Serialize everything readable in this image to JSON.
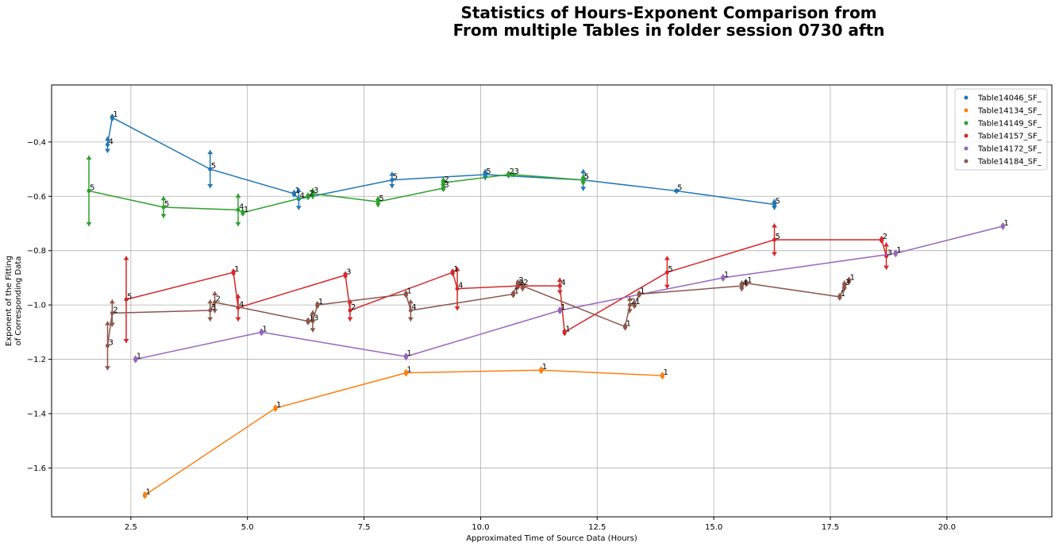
{
  "chart_data": {
    "type": "line",
    "title_lines": [
      "Statistics of Hours-Exponent Comparison from",
      "From multiple Tables in folder session 0730 aftn"
    ],
    "xlabel": "Approximated Time of Source Data (Hours)",
    "ylabel_lines": [
      "Exponent of the Fitting",
      "of Corresponding Data"
    ],
    "xlim": [
      0.8,
      22.25
    ],
    "ylim": [
      -1.78,
      -0.19
    ],
    "xticks": [
      2.5,
      5.0,
      7.5,
      10.0,
      12.5,
      15.0,
      17.5,
      20.0
    ],
    "xtick_labels": [
      "2.5",
      "5.0",
      "7.5",
      "10.0",
      "12.5",
      "15.0",
      "17.5",
      "20.0"
    ],
    "yticks": [
      -1.6,
      -1.4,
      -1.2,
      -1.0,
      -0.8,
      -0.6,
      -0.4
    ],
    "ytick_labels": [
      "−1.6",
      "−1.4",
      "−1.2",
      "−1.0",
      "−0.8",
      "−0.6",
      "−0.4"
    ],
    "grid": true,
    "legend_position": "top-right",
    "series": [
      {
        "name": "Table14046_SF_",
        "color": "#1f77b4",
        "points": [
          {
            "x": 2.0,
            "y": -0.41,
            "err": 0.03,
            "label": "4"
          },
          {
            "x": 2.1,
            "y": -0.31,
            "err": 0.0,
            "label": "1"
          },
          {
            "x": 4.2,
            "y": -0.5,
            "err": 0.07,
            "label": "5"
          },
          {
            "x": 6.0,
            "y": -0.59,
            "err": 0.0,
            "label": "1"
          },
          {
            "x": 6.1,
            "y": -0.61,
            "err": 0.04,
            "label": "4"
          },
          {
            "x": 8.1,
            "y": -0.54,
            "err": 0.03,
            "label": "5"
          },
          {
            "x": 10.1,
            "y": -0.52,
            "err": 0.02,
            "label": "5"
          },
          {
            "x": 12.2,
            "y": -0.54,
            "err": 0.04,
            "label": "5"
          },
          {
            "x": 14.2,
            "y": -0.58,
            "err": 0.01,
            "label": "5"
          },
          {
            "x": 16.3,
            "y": -0.63,
            "err": 0.02,
            "label": "5"
          }
        ]
      },
      {
        "name": "Table14134_SF_",
        "color": "#ff7f0e",
        "points": [
          {
            "x": 2.8,
            "y": -1.7,
            "err": 0.0,
            "label": "1"
          },
          {
            "x": 5.6,
            "y": -1.38,
            "err": 0.0,
            "label": "1"
          },
          {
            "x": 8.4,
            "y": -1.25,
            "err": 0.0,
            "label": "1"
          },
          {
            "x": 11.3,
            "y": -1.24,
            "err": 0.0,
            "label": "1"
          },
          {
            "x": 13.9,
            "y": -1.26,
            "err": 0.0,
            "label": "1"
          }
        ]
      },
      {
        "name": "Table14149_SF_",
        "color": "#2ca02c",
        "points": [
          {
            "x": 1.6,
            "y": -0.58,
            "err": 0.13,
            "label": "5"
          },
          {
            "x": 3.2,
            "y": -0.64,
            "err": 0.04,
            "label": "5"
          },
          {
            "x": 4.8,
            "y": -0.65,
            "err": 0.06,
            "label": "4"
          },
          {
            "x": 4.9,
            "y": -0.66,
            "err": 0.0,
            "label": "1"
          },
          {
            "x": 6.3,
            "y": -0.6,
            "err": 0.0,
            "label": "2"
          },
          {
            "x": 6.4,
            "y": -0.59,
            "err": 0.02,
            "label": "3"
          },
          {
            "x": 7.8,
            "y": -0.62,
            "err": 0.02,
            "label": "5"
          },
          {
            "x": 9.2,
            "y": -0.57,
            "err": 0.0,
            "label": "3"
          },
          {
            "x": 9.2,
            "y": -0.55,
            "err": 0.02,
            "label": "2"
          },
          {
            "x": 10.6,
            "y": -0.52,
            "err": 0.0,
            "label": "2"
          },
          {
            "x": 10.7,
            "y": -0.52,
            "err": 0.01,
            "label": "3"
          },
          {
            "x": 12.2,
            "y": -0.54,
            "err": 0.02,
            "label": "5"
          }
        ]
      },
      {
        "name": "Table14157_SF_",
        "color": "#d62728",
        "points": [
          {
            "x": 2.4,
            "y": -0.98,
            "err": 0.16,
            "label": "5"
          },
          {
            "x": 4.7,
            "y": -0.88,
            "err": 0.0,
            "label": "1"
          },
          {
            "x": 4.8,
            "y": -1.01,
            "err": 0.05,
            "label": "4"
          },
          {
            "x": 7.1,
            "y": -0.89,
            "err": 0.0,
            "label": "3"
          },
          {
            "x": 7.2,
            "y": -1.02,
            "err": 0.04,
            "label": "2"
          },
          {
            "x": 9.4,
            "y": -0.88,
            "err": 0.0,
            "label": "1"
          },
          {
            "x": 9.5,
            "y": -0.94,
            "err": 0.08,
            "label": "4"
          },
          {
            "x": 10.8,
            "y": -0.93,
            "err": 0.0,
            "label": "2"
          },
          {
            "x": 11.7,
            "y": -0.93,
            "err": 0.03,
            "label": "4"
          },
          {
            "x": 11.8,
            "y": -1.1,
            "err": 0.0,
            "label": "1"
          },
          {
            "x": 14.0,
            "y": -0.88,
            "err": 0.06,
            "label": "5"
          },
          {
            "x": 16.3,
            "y": -0.76,
            "err": 0.06,
            "label": "5"
          },
          {
            "x": 18.6,
            "y": -0.76,
            "err": 0.0,
            "label": "2"
          },
          {
            "x": 18.7,
            "y": -0.82,
            "err": 0.05,
            "label": "3"
          }
        ]
      },
      {
        "name": "Table14172_SF_",
        "color": "#9467bd",
        "points": [
          {
            "x": 2.6,
            "y": -1.2,
            "err": 0.0,
            "label": "1"
          },
          {
            "x": 5.3,
            "y": -1.1,
            "err": 0.0,
            "label": "1"
          },
          {
            "x": 8.4,
            "y": -1.19,
            "err": 0.0,
            "label": "1"
          },
          {
            "x": 11.7,
            "y": -1.02,
            "err": 0.0,
            "label": "1"
          },
          {
            "x": 15.2,
            "y": -0.9,
            "err": 0.0,
            "label": "1"
          },
          {
            "x": 18.9,
            "y": -0.81,
            "err": 0.0,
            "label": "1"
          },
          {
            "x": 21.2,
            "y": -0.71,
            "err": 0.0,
            "label": "1"
          }
        ]
      },
      {
        "name": "Table14184_SF_",
        "color": "#8c564b",
        "points": [
          {
            "x": 2.0,
            "y": -1.15,
            "err": 0.09,
            "label": "3"
          },
          {
            "x": 2.1,
            "y": -1.03,
            "err": 0.05,
            "label": "2"
          },
          {
            "x": 4.2,
            "y": -1.02,
            "err": 0.04,
            "label": "3"
          },
          {
            "x": 4.3,
            "y": -0.99,
            "err": 0.04,
            "label": "2"
          },
          {
            "x": 6.3,
            "y": -1.06,
            "err": 0.0,
            "label": "1"
          },
          {
            "x": 6.4,
            "y": -1.06,
            "err": 0.04,
            "label": "3"
          },
          {
            "x": 6.5,
            "y": -1.0,
            "err": 0.0,
            "label": "1"
          },
          {
            "x": 8.4,
            "y": -0.96,
            "err": 0.0,
            "label": "1"
          },
          {
            "x": 8.5,
            "y": -1.02,
            "err": 0.04,
            "label": "4"
          },
          {
            "x": 10.7,
            "y": -0.96,
            "err": 0.0,
            "label": "1"
          },
          {
            "x": 10.8,
            "y": -0.92,
            "err": 0.0,
            "label": "2"
          },
          {
            "x": 10.9,
            "y": -0.93,
            "err": 0.02,
            "label": "2"
          },
          {
            "x": 13.1,
            "y": -1.08,
            "err": 0.0,
            "label": "1"
          },
          {
            "x": 13.2,
            "y": -1.0,
            "err": 0.03,
            "label": "2"
          },
          {
            "x": 13.3,
            "y": -1.0,
            "err": 0.0,
            "label": "1"
          },
          {
            "x": 13.4,
            "y": -0.96,
            "err": 0.0,
            "label": "1"
          },
          {
            "x": 15.6,
            "y": -0.93,
            "err": 0.02,
            "label": "4"
          },
          {
            "x": 15.7,
            "y": -0.92,
            "err": 0.0,
            "label": "1"
          },
          {
            "x": 17.7,
            "y": -0.97,
            "err": 0.0,
            "label": "1"
          },
          {
            "x": 17.8,
            "y": -0.93,
            "err": 0.02,
            "label": "3"
          },
          {
            "x": 17.9,
            "y": -0.91,
            "err": 0.0,
            "label": "1"
          }
        ]
      }
    ]
  }
}
